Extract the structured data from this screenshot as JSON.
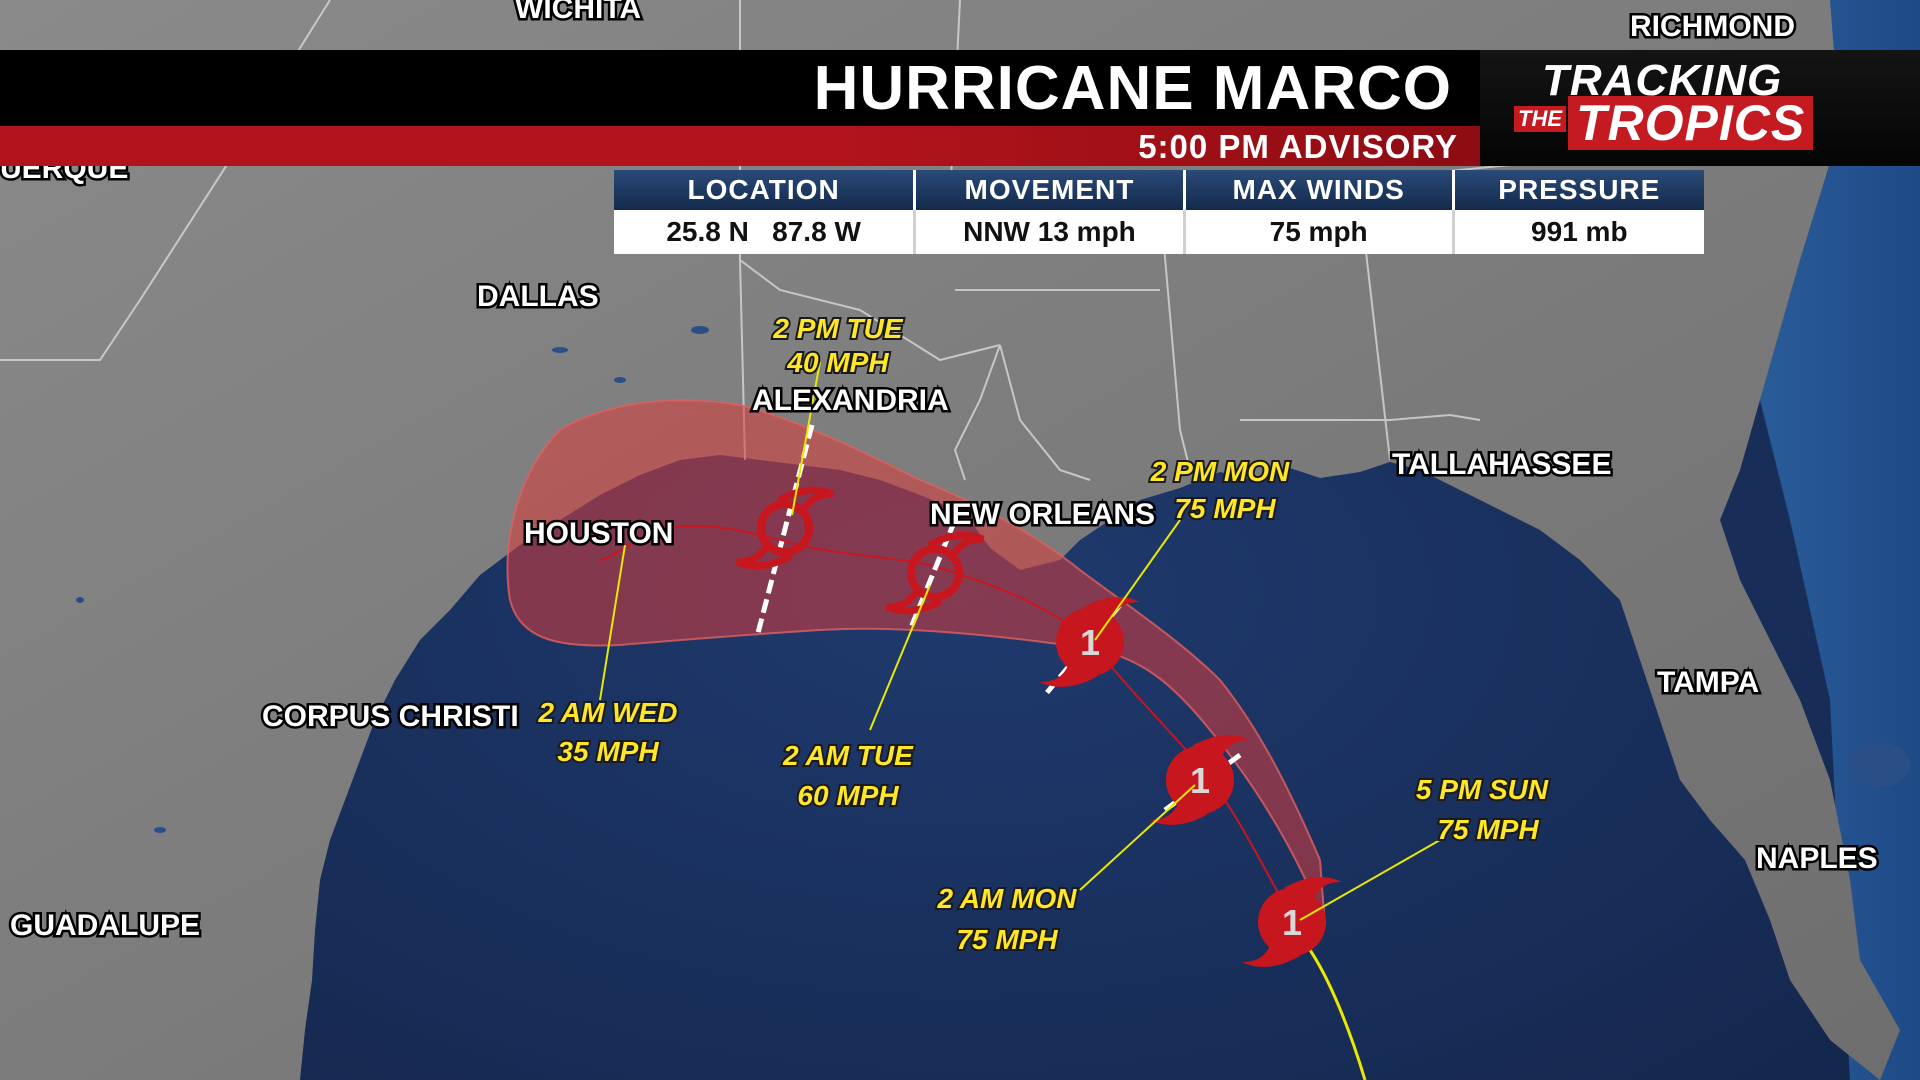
{
  "header": {
    "storm_title": "HURRICANE MARCO",
    "advisory": "5:00 PM ADVISORY"
  },
  "logo": {
    "line1": "TRACKING",
    "the": "THE",
    "line2": "TROPICS",
    "accent_color": "#c41a22"
  },
  "info_table": {
    "headers": [
      "LOCATION",
      "MOVEMENT",
      "MAX WINDS",
      "PRESSURE"
    ],
    "values": [
      "25.8 N   87.8 W",
      "NNW 13 mph",
      "75 mph",
      "991 mb"
    ]
  },
  "cities": {
    "wichita": "WICHITA",
    "richmond": "RICHMOND",
    "albuquerque": "UERQUE",
    "dallas": "DALLAS",
    "alexandria": "ALEXANDRIA",
    "houston": "HOUSTON",
    "new_orleans": "NEW ORLEANS",
    "tallahassee": "TALLAHASSEE",
    "corpus_christi": "CORPUS CHRISTI",
    "tampa": "TAMPA",
    "naples": "NAPLES",
    "guadalupe": "GUADALUPE"
  },
  "forecast_points": [
    {
      "time": "5 PM SUN",
      "wind": "75 MPH",
      "category": "1"
    },
    {
      "time": "2 AM MON",
      "wind": "75 MPH",
      "category": "1"
    },
    {
      "time": "2 PM MON",
      "wind": "75 MPH",
      "category": "1"
    },
    {
      "time": "2 AM TUE",
      "wind": "60 MPH",
      "category": ""
    },
    {
      "time": "2 PM TUE",
      "wind": "40 MPH",
      "category": ""
    },
    {
      "time": "2 AM WED",
      "wind": "35 MPH",
      "category": ""
    }
  ],
  "colors": {
    "cone_fill": "#d83c3c",
    "track_line": "#e8e800",
    "label_text": "#ffe628",
    "symbol_red": "#c8161e"
  }
}
